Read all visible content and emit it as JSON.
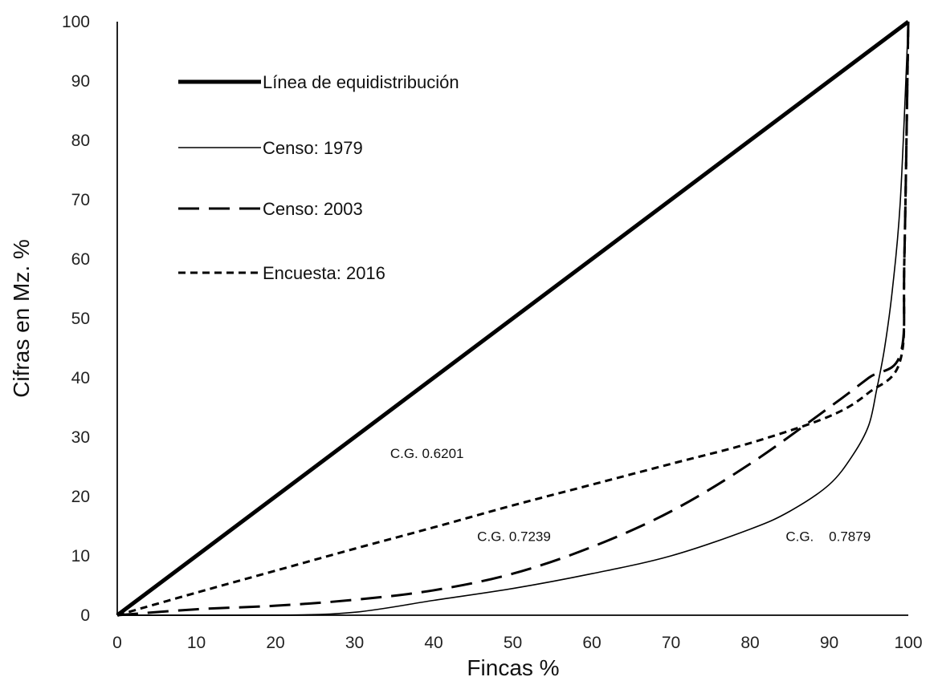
{
  "chart_data": {
    "type": "line",
    "xlabel": "Fincas %",
    "ylabel": "Cifras en  Mz. %",
    "xlim": [
      0,
      100
    ],
    "ylim": [
      0,
      100
    ],
    "xticks": [
      "0",
      "10",
      "20",
      "30",
      "40",
      "50",
      "60",
      "70",
      "80",
      "90",
      "100"
    ],
    "yticks": [
      "0",
      "10",
      "20",
      "30",
      "40",
      "50",
      "60",
      "70",
      "80",
      "90",
      "100"
    ],
    "grid": false,
    "legend_position": "top-left",
    "series": [
      {
        "name": "Línea de equidistribución",
        "style": "thick-solid",
        "x": [
          0,
          100
        ],
        "y": [
          0,
          100
        ]
      },
      {
        "name": "Censo: 1979",
        "style": "thin-solid",
        "x": [
          0,
          20,
          30,
          40,
          50,
          60,
          70,
          80,
          85,
          90,
          93,
          95,
          96,
          97,
          98,
          99,
          100
        ],
        "y": [
          0,
          0,
          0.5,
          2.5,
          4.5,
          7,
          10,
          14.5,
          17.5,
          22,
          27,
          32,
          38,
          45,
          55,
          70,
          100
        ]
      },
      {
        "name": "Censo: 2003",
        "style": "long-dash",
        "x": [
          0,
          10,
          20,
          30,
          40,
          50,
          60,
          70,
          80,
          90,
          95,
          99,
          99.5,
          100
        ],
        "y": [
          0,
          1,
          1.6,
          2.6,
          4.2,
          7,
          11.5,
          17.5,
          25.5,
          35,
          40,
          44,
          60,
          100
        ]
      },
      {
        "name": "Encuesta: 2016",
        "style": "short-dash",
        "x": [
          0,
          10,
          20,
          30,
          40,
          50,
          60,
          70,
          80,
          90,
          95,
          99,
          99.5,
          100
        ],
        "y": [
          0,
          3.8,
          7.5,
          11.2,
          14.8,
          18.5,
          22,
          25.5,
          29,
          33.5,
          37.5,
          43,
          60,
          100
        ]
      }
    ],
    "annotations": [
      {
        "text": "C.G. 0.6201",
        "x": 34.5,
        "y": 26.5
      },
      {
        "text": "C.G. 0.7239",
        "x": 45.5,
        "y": 12.5
      },
      {
        "text": "C.G.    0.7879",
        "x": 84.5,
        "y": 12.5
      }
    ]
  }
}
